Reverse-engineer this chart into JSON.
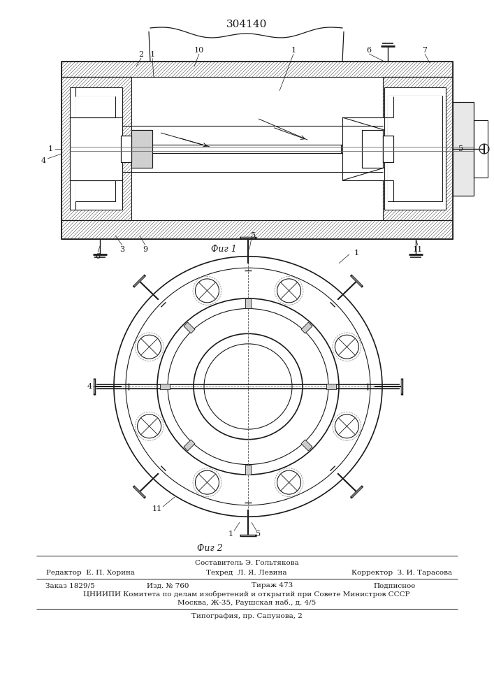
{
  "patent_number": "304140",
  "fig1_caption": "Фиг 1",
  "fig2_caption": "Фиг 2",
  "footer_composed": "Составитель Э. Гольтякова",
  "footer_editor": "Редактор  Е. П. Хорина",
  "footer_tech": "Техред  Л. Я. Левина",
  "footer_corr": "Корректор  З. И. Тарасова",
  "footer_order": "Заказ 1829/5",
  "footer_pub": "Изд. № 760",
  "footer_circ": "Тираж 473",
  "footer_sub": "Подписное",
  "footer_org": "ЦНИИПИ Комитета по делам изобретений и открытий при Совете Министров СССР",
  "footer_addr": "Москва, Ж-35, Раушская наб., д. 4/5",
  "footer_print": "Типография, пр. Сапунова, 2",
  "bg": "#ffffff",
  "lc": "#1a1a1a",
  "hatch_color": "#555555"
}
